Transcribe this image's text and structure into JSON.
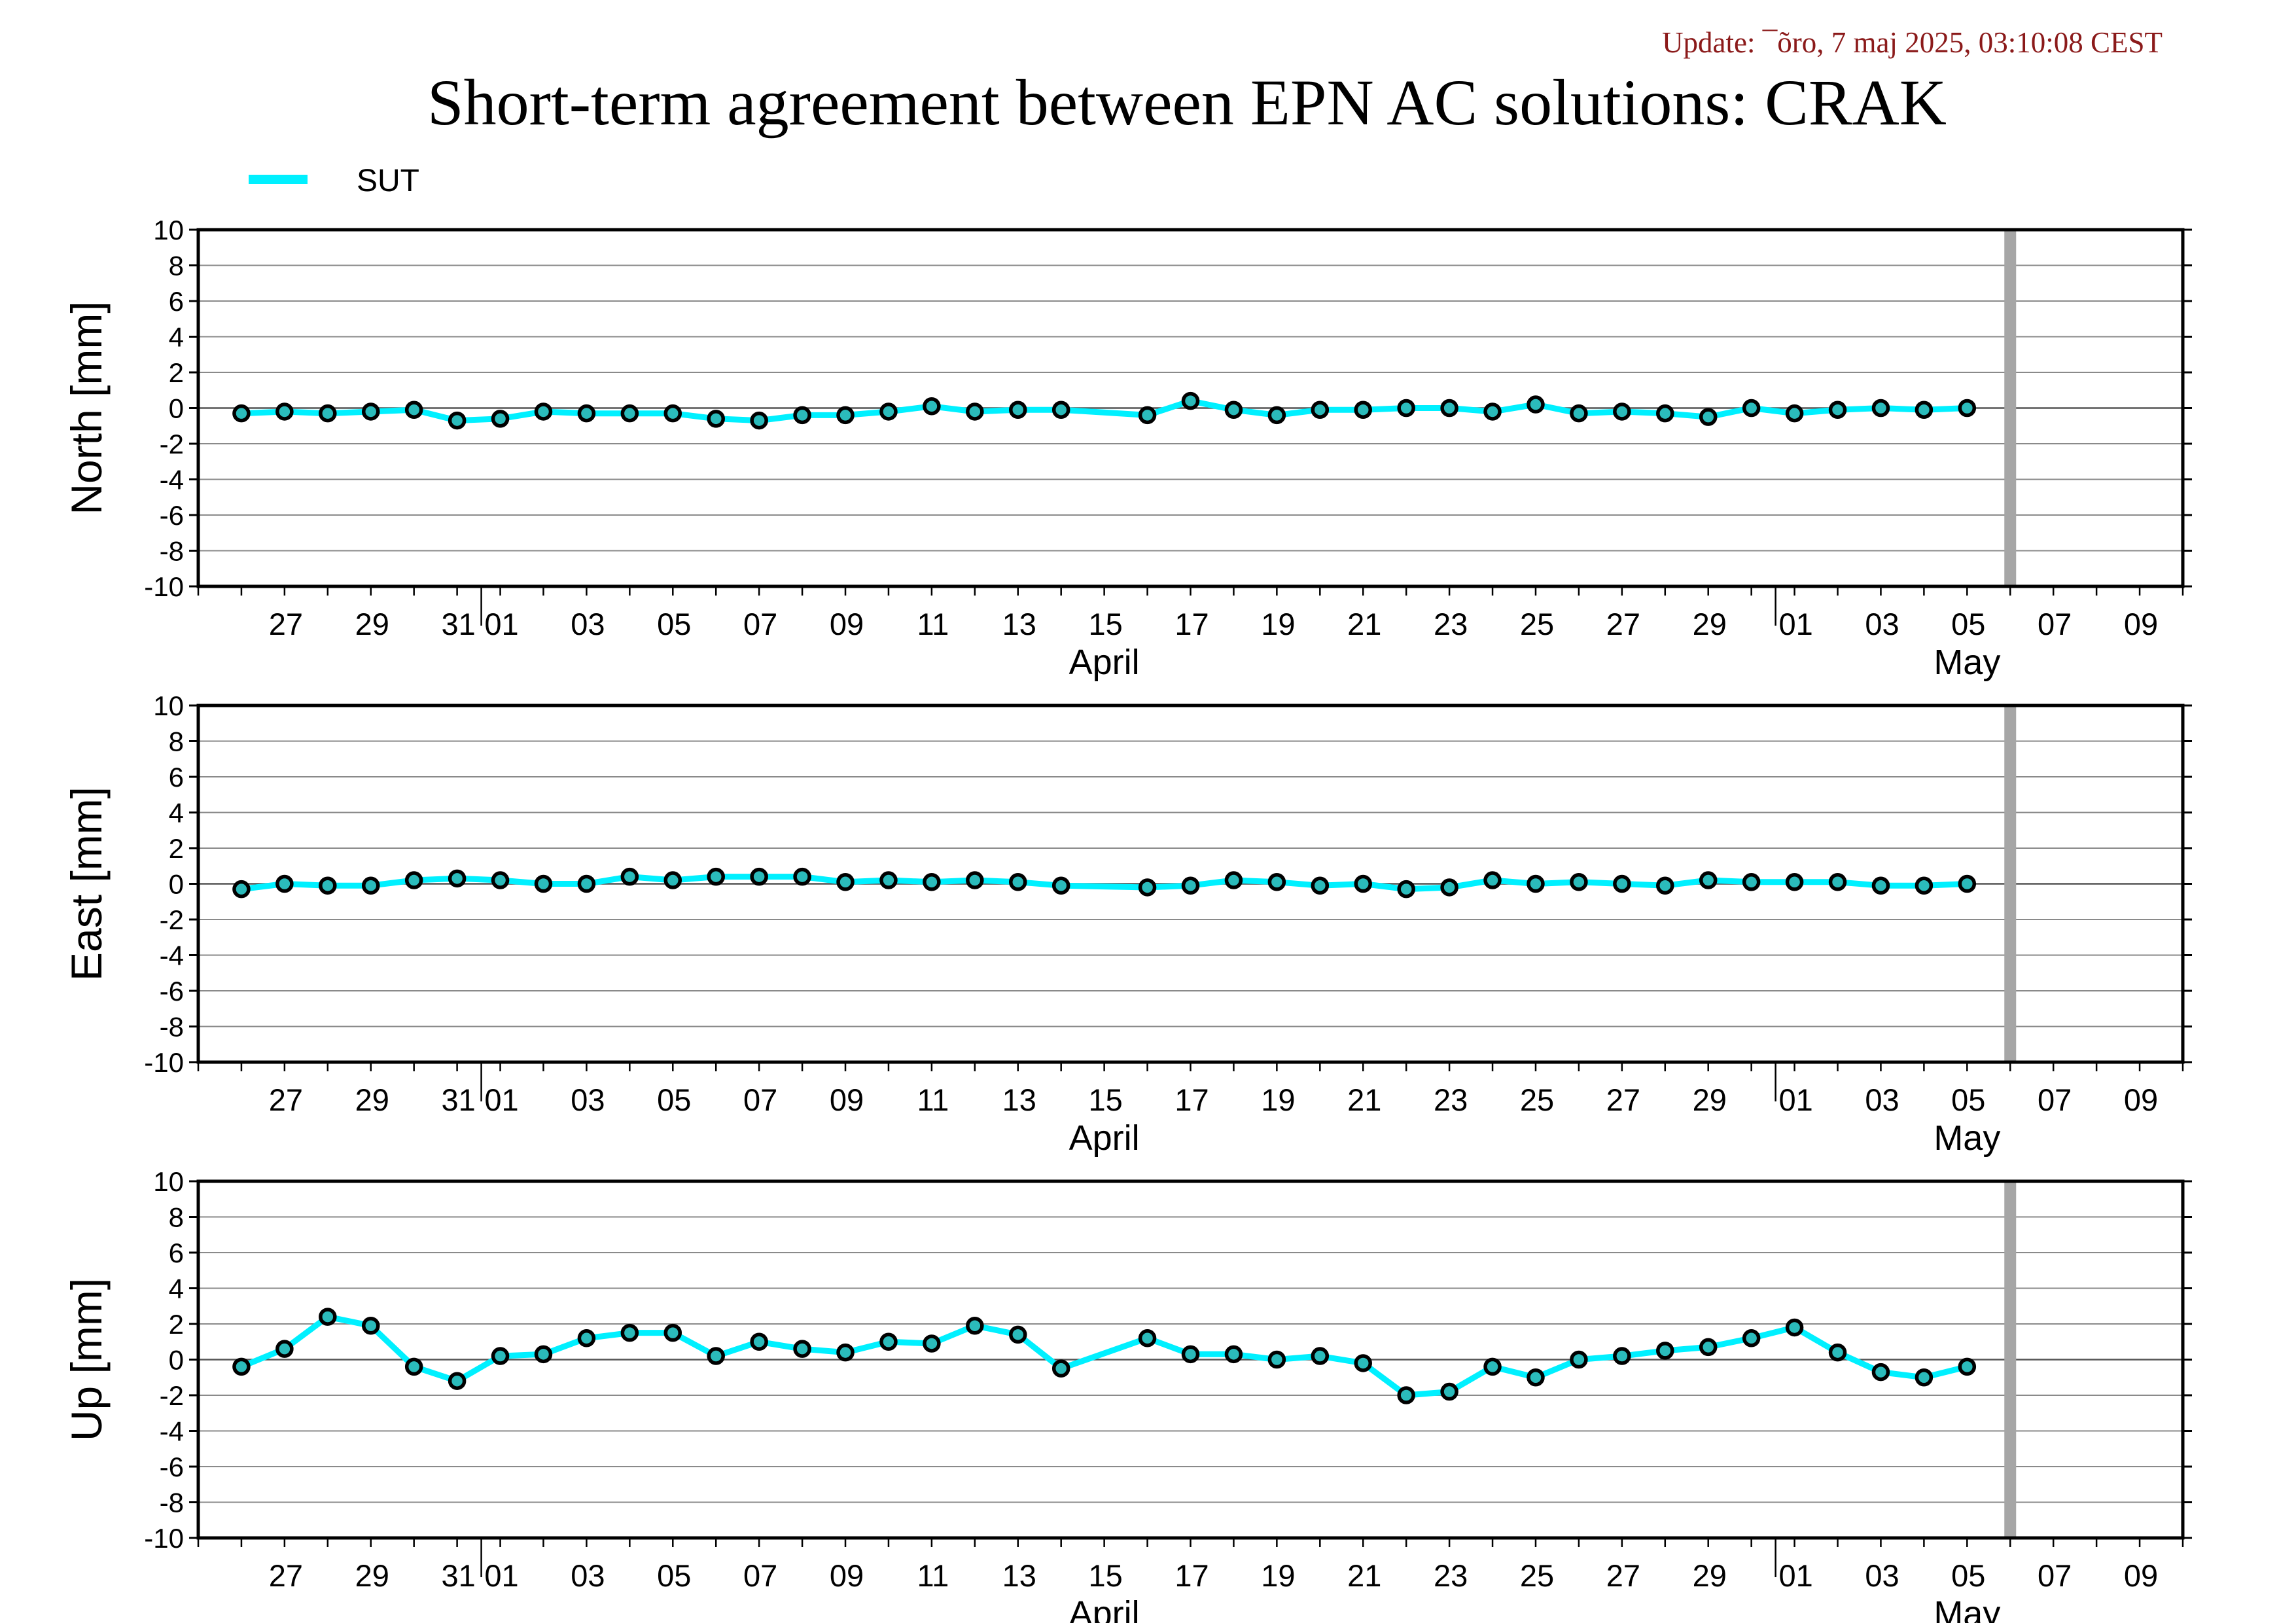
{
  "header": {
    "update": "Update: ¯õro, 7 maj 2025, 03:10:08 CEST",
    "title": "Short-term agreement between EPN AC solutions: CRAK"
  },
  "legend": {
    "label": "SUT",
    "color": "#00f0ff"
  },
  "colors": {
    "series": "#00f0ff",
    "marker_edge": "#000000",
    "marker_fill": "#2bbbbb",
    "grid": "#8a8a8a",
    "zero_line": "#555555",
    "today_band": "#a6a6a6"
  },
  "chart_data": [
    {
      "type": "line",
      "ylabel": "North [mm]",
      "ylim": [
        -10,
        10
      ],
      "yticks": [
        "10",
        "8",
        "6",
        "4",
        "2",
        "0",
        "-2",
        "-4",
        "-6",
        "-8",
        "-10"
      ],
      "xlim": [
        "2025-03-25",
        "2025-05-10"
      ],
      "xtick_labels": [
        "27",
        "29",
        "31",
        "01",
        "03",
        "05",
        "07",
        "09",
        "11",
        "13",
        "15",
        "17",
        "19",
        "21",
        "23",
        "25",
        "27",
        "29",
        "01",
        "03",
        "05",
        "07",
        "09"
      ],
      "xtick_dates": [
        "2025-03-27",
        "2025-03-29",
        "2025-03-31",
        "2025-04-01",
        "2025-04-03",
        "2025-04-05",
        "2025-04-07",
        "2025-04-09",
        "2025-04-11",
        "2025-04-13",
        "2025-04-15",
        "2025-04-17",
        "2025-04-19",
        "2025-04-21",
        "2025-04-23",
        "2025-04-25",
        "2025-04-27",
        "2025-04-29",
        "2025-05-01",
        "2025-05-03",
        "2025-05-05",
        "2025-05-07",
        "2025-05-09"
      ],
      "month_labels": [
        {
          "label": "April",
          "date": "2025-04-15"
        },
        {
          "label": "May",
          "date": "2025-05-05"
        }
      ],
      "marker_line_date": "2025-05-06",
      "series": [
        {
          "name": "SUT",
          "x": [
            "2025-03-26",
            "2025-03-27",
            "2025-03-28",
            "2025-03-29",
            "2025-03-30",
            "2025-03-31",
            "2025-04-01",
            "2025-04-02",
            "2025-04-03",
            "2025-04-04",
            "2025-04-05",
            "2025-04-06",
            "2025-04-07",
            "2025-04-08",
            "2025-04-09",
            "2025-04-10",
            "2025-04-11",
            "2025-04-12",
            "2025-04-13",
            "2025-04-14",
            "2025-04-16",
            "2025-04-17",
            "2025-04-18",
            "2025-04-19",
            "2025-04-20",
            "2025-04-21",
            "2025-04-22",
            "2025-04-23",
            "2025-04-24",
            "2025-04-25",
            "2025-04-26",
            "2025-04-27",
            "2025-04-28",
            "2025-04-29",
            "2025-04-30",
            "2025-05-01",
            "2025-05-02",
            "2025-05-03",
            "2025-05-04",
            "2025-05-05"
          ],
          "y": [
            -0.3,
            -0.2,
            -0.3,
            -0.2,
            -0.1,
            -0.7,
            -0.6,
            -0.2,
            -0.3,
            -0.3,
            -0.3,
            -0.6,
            -0.7,
            -0.4,
            -0.4,
            -0.2,
            0.1,
            -0.2,
            -0.1,
            -0.1,
            -0.4,
            0.4,
            -0.1,
            -0.4,
            -0.1,
            -0.1,
            0.0,
            0.0,
            -0.2,
            0.2,
            -0.3,
            -0.2,
            -0.3,
            -0.5,
            0.0,
            -0.3,
            -0.1,
            0.0,
            -0.1,
            0.0
          ]
        }
      ]
    },
    {
      "type": "line",
      "ylabel": "East [mm]",
      "ylim": [
        -10,
        10
      ],
      "yticks": [
        "10",
        "8",
        "6",
        "4",
        "2",
        "0",
        "-2",
        "-4",
        "-6",
        "-8",
        "-10"
      ],
      "xlim": [
        "2025-03-25",
        "2025-05-10"
      ],
      "xtick_labels": [
        "27",
        "29",
        "31",
        "01",
        "03",
        "05",
        "07",
        "09",
        "11",
        "13",
        "15",
        "17",
        "19",
        "21",
        "23",
        "25",
        "27",
        "29",
        "01",
        "03",
        "05",
        "07",
        "09"
      ],
      "xtick_dates": [
        "2025-03-27",
        "2025-03-29",
        "2025-03-31",
        "2025-04-01",
        "2025-04-03",
        "2025-04-05",
        "2025-04-07",
        "2025-04-09",
        "2025-04-11",
        "2025-04-13",
        "2025-04-15",
        "2025-04-17",
        "2025-04-19",
        "2025-04-21",
        "2025-04-23",
        "2025-04-25",
        "2025-04-27",
        "2025-04-29",
        "2025-05-01",
        "2025-05-03",
        "2025-05-05",
        "2025-05-07",
        "2025-05-09"
      ],
      "month_labels": [
        {
          "label": "April",
          "date": "2025-04-15"
        },
        {
          "label": "May",
          "date": "2025-05-05"
        }
      ],
      "marker_line_date": "2025-05-06",
      "series": [
        {
          "name": "SUT",
          "x": [
            "2025-03-26",
            "2025-03-27",
            "2025-03-28",
            "2025-03-29",
            "2025-03-30",
            "2025-03-31",
            "2025-04-01",
            "2025-04-02",
            "2025-04-03",
            "2025-04-04",
            "2025-04-05",
            "2025-04-06",
            "2025-04-07",
            "2025-04-08",
            "2025-04-09",
            "2025-04-10",
            "2025-04-11",
            "2025-04-12",
            "2025-04-13",
            "2025-04-14",
            "2025-04-16",
            "2025-04-17",
            "2025-04-18",
            "2025-04-19",
            "2025-04-20",
            "2025-04-21",
            "2025-04-22",
            "2025-04-23",
            "2025-04-24",
            "2025-04-25",
            "2025-04-26",
            "2025-04-27",
            "2025-04-28",
            "2025-04-29",
            "2025-04-30",
            "2025-05-01",
            "2025-05-02",
            "2025-05-03",
            "2025-05-04",
            "2025-05-05"
          ],
          "y": [
            -0.3,
            0.0,
            -0.1,
            -0.1,
            0.2,
            0.3,
            0.2,
            0.0,
            0.0,
            0.4,
            0.2,
            0.4,
            0.4,
            0.4,
            0.1,
            0.2,
            0.1,
            0.2,
            0.1,
            -0.1,
            -0.2,
            -0.1,
            0.2,
            0.1,
            -0.1,
            0.0,
            -0.3,
            -0.2,
            0.2,
            0.0,
            0.1,
            0.0,
            -0.1,
            0.2,
            0.1,
            0.1,
            0.1,
            -0.1,
            -0.1,
            0.0
          ]
        }
      ]
    },
    {
      "type": "line",
      "ylabel": "Up [mm]",
      "ylim": [
        -10,
        10
      ],
      "yticks": [
        "10",
        "8",
        "6",
        "4",
        "2",
        "0",
        "-2",
        "-4",
        "-6",
        "-8",
        "-10"
      ],
      "xlim": [
        "2025-03-25",
        "2025-05-10"
      ],
      "xtick_labels": [
        "27",
        "29",
        "31",
        "01",
        "03",
        "05",
        "07",
        "09",
        "11",
        "13",
        "15",
        "17",
        "19",
        "21",
        "23",
        "25",
        "27",
        "29",
        "01",
        "03",
        "05",
        "07",
        "09"
      ],
      "xtick_dates": [
        "2025-03-27",
        "2025-03-29",
        "2025-03-31",
        "2025-04-01",
        "2025-04-03",
        "2025-04-05",
        "2025-04-07",
        "2025-04-09",
        "2025-04-11",
        "2025-04-13",
        "2025-04-15",
        "2025-04-17",
        "2025-04-19",
        "2025-04-21",
        "2025-04-23",
        "2025-04-25",
        "2025-04-27",
        "2025-04-29",
        "2025-05-01",
        "2025-05-03",
        "2025-05-05",
        "2025-05-07",
        "2025-05-09"
      ],
      "month_labels": [
        {
          "label": "April",
          "date": "2025-04-15"
        },
        {
          "label": "May",
          "date": "2025-05-05"
        }
      ],
      "marker_line_date": "2025-05-06",
      "series": [
        {
          "name": "SUT",
          "x": [
            "2025-03-26",
            "2025-03-27",
            "2025-03-28",
            "2025-03-29",
            "2025-03-30",
            "2025-03-31",
            "2025-04-01",
            "2025-04-02",
            "2025-04-03",
            "2025-04-04",
            "2025-04-05",
            "2025-04-06",
            "2025-04-07",
            "2025-04-08",
            "2025-04-09",
            "2025-04-10",
            "2025-04-11",
            "2025-04-12",
            "2025-04-13",
            "2025-04-14",
            "2025-04-16",
            "2025-04-17",
            "2025-04-18",
            "2025-04-19",
            "2025-04-20",
            "2025-04-21",
            "2025-04-22",
            "2025-04-23",
            "2025-04-24",
            "2025-04-25",
            "2025-04-26",
            "2025-04-27",
            "2025-04-28",
            "2025-04-29",
            "2025-04-30",
            "2025-05-01",
            "2025-05-02",
            "2025-05-03",
            "2025-05-04",
            "2025-05-05"
          ],
          "y": [
            -0.4,
            0.6,
            2.4,
            1.9,
            -0.4,
            -1.2,
            0.2,
            0.3,
            1.2,
            1.5,
            1.5,
            0.2,
            1.0,
            0.6,
            0.4,
            1.0,
            0.9,
            1.9,
            1.4,
            -0.5,
            1.2,
            0.3,
            0.3,
            0.0,
            0.2,
            -0.2,
            -2.0,
            -1.8,
            -0.4,
            -1.0,
            0.0,
            0.2,
            0.5,
            0.7,
            1.2,
            1.8,
            0.4,
            -0.7,
            -1.0,
            -0.4
          ]
        }
      ]
    }
  ]
}
